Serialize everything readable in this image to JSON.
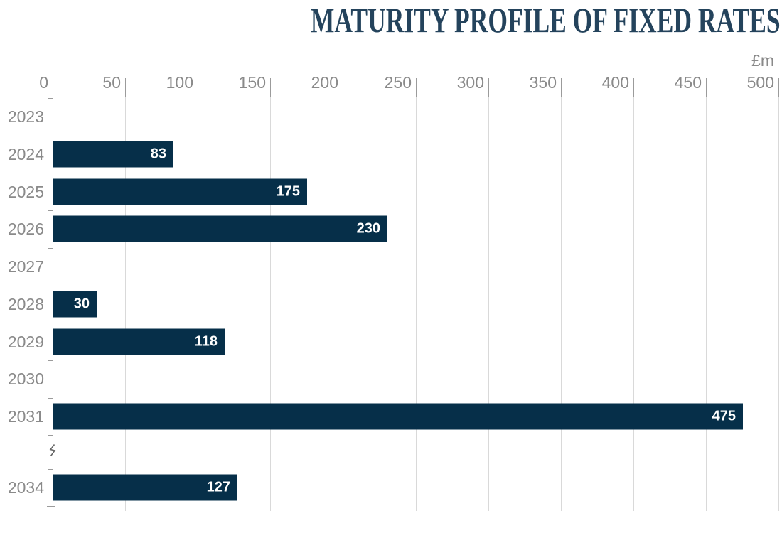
{
  "chart_data": {
    "type": "bar",
    "orientation": "horizontal",
    "title": "MATURITY PROFILE OF FIXED RATES",
    "unit_label": "£m",
    "xlabel": "",
    "ylabel": "",
    "xlim": [
      0,
      500
    ],
    "x_ticks": [
      "0",
      "50",
      "100",
      "150",
      "200",
      "250",
      "300",
      "350",
      "400",
      "450",
      "500"
    ],
    "grid": "vertical-lines-on",
    "legend": "none",
    "axis_break_between": [
      "2031",
      "2034"
    ],
    "rows": [
      {
        "year": "2023",
        "value": null
      },
      {
        "year": "2024",
        "value": 83
      },
      {
        "year": "2025",
        "value": 175
      },
      {
        "year": "2026",
        "value": 230
      },
      {
        "year": "2027",
        "value": null
      },
      {
        "year": "2028",
        "value": 30
      },
      {
        "year": "2029",
        "value": 118
      },
      {
        "year": "2030",
        "value": null
      },
      {
        "year": "2031",
        "value": 475
      },
      {
        "year": "",
        "value": null,
        "axis_break": true
      },
      {
        "year": "2034",
        "value": 127
      }
    ],
    "colors": {
      "bar": "#062f49",
      "title": "#24435c",
      "axis_text": "#8a8a8a",
      "gridline": "#d9d9d9",
      "axis_line": "#9b9b9b",
      "value_text": "#ffffff",
      "break_mark": "#666666"
    }
  }
}
